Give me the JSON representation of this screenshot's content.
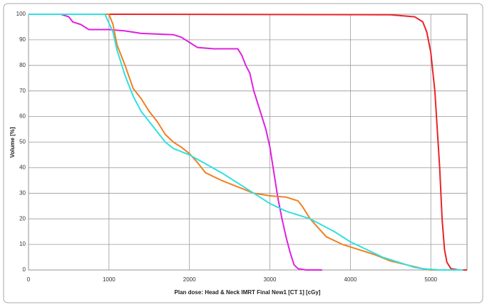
{
  "chart_data": {
    "type": "line",
    "xlabel": "Plan dose: Head & Neck IMRT Final New1 [CT 1] [cGy]",
    "ylabel": "Volume [%]",
    "xlim": [
      0,
      5450
    ],
    "xticks": [
      0,
      1000,
      2000,
      3000,
      4000,
      5000
    ],
    "ylim": [
      0,
      100
    ],
    "yticks": [
      0,
      10,
      20,
      30,
      40,
      50,
      60,
      70,
      80,
      90,
      100
    ],
    "grid": true,
    "series": [
      {
        "color": "#e8242a",
        "x": [
          950,
          1000,
          4500,
          4800,
          4900,
          4950,
          5000,
          5050,
          5080,
          5110,
          5140,
          5170,
          5200,
          5250,
          5350,
          5450
        ],
        "values": [
          100,
          100,
          99.8,
          99,
          97,
          93,
          85,
          70,
          55,
          40,
          20,
          8,
          3,
          0.5,
          0,
          0
        ]
      },
      {
        "color": "#e020e0",
        "x": [
          400,
          500,
          550,
          650,
          750,
          1000,
          1200,
          1400,
          1800,
          1900,
          2000,
          2100,
          2300,
          2600,
          2650,
          2700,
          2750,
          2800,
          2900,
          2950,
          3000,
          3050,
          3100,
          3150,
          3200,
          3250,
          3300,
          3350,
          3450,
          3650
        ],
        "values": [
          100,
          99,
          97,
          96,
          94,
          94,
          93.5,
          92.5,
          92,
          91,
          89,
          87,
          86.5,
          86.5,
          84,
          80,
          77,
          70,
          60,
          55,
          48,
          38,
          28,
          20,
          13,
          7,
          2,
          0.5,
          0,
          0
        ]
      },
      {
        "color": "#f08020",
        "x": [
          950,
          1000,
          1050,
          1100,
          1200,
          1300,
          1400,
          1500,
          1600,
          1700,
          1800,
          1900,
          2000,
          2100,
          2200,
          2400,
          2600,
          2800,
          3000,
          3200,
          3350,
          3400,
          3500,
          3700,
          3900,
          4100,
          4300,
          4500,
          4700,
          4900,
          5000,
          5400
        ],
        "values": [
          100,
          100,
          96,
          88,
          80,
          71,
          67,
          62,
          58,
          53,
          50,
          48,
          45.5,
          42,
          38,
          35,
          32.5,
          30,
          29,
          28.5,
          27,
          25,
          20,
          13,
          10,
          8,
          6,
          3.5,
          2,
          0.5,
          0,
          0
        ]
      },
      {
        "color": "#30e0e0",
        "x": [
          0,
          950,
          1050,
          1100,
          1200,
          1300,
          1400,
          1500,
          1600,
          1700,
          1800,
          2000,
          2200,
          2400,
          2600,
          2800,
          3000,
          3200,
          3500,
          3800,
          4000,
          4200,
          4400,
          4600,
          4800,
          4900,
          5100,
          5400
        ],
        "values": [
          100,
          100,
          93,
          86,
          76,
          68,
          62,
          58,
          54,
          50,
          47.5,
          45,
          41.5,
          38,
          34,
          30,
          26,
          23,
          20,
          15,
          11,
          8,
          5,
          3,
          1,
          0.5,
          0,
          0
        ]
      }
    ]
  }
}
